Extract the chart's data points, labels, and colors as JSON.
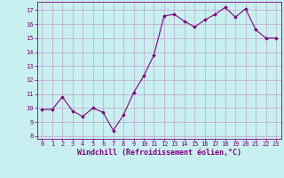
{
  "x": [
    0,
    1,
    2,
    3,
    4,
    5,
    6,
    7,
    8,
    9,
    10,
    11,
    12,
    13,
    14,
    15,
    16,
    17,
    18,
    19,
    20,
    21,
    22,
    23
  ],
  "y": [
    9.9,
    9.9,
    10.8,
    9.8,
    9.4,
    10.0,
    9.7,
    8.4,
    9.5,
    11.1,
    12.3,
    13.8,
    16.6,
    16.7,
    16.2,
    15.8,
    16.3,
    16.7,
    17.2,
    16.5,
    17.1,
    15.6,
    15.0,
    15.0
  ],
  "line_color": "#800080",
  "marker": "D",
  "marker_size": 1.8,
  "background_color": "#c8f0f0",
  "grid_color": "#c090c0",
  "xlabel": "Windchill (Refroidissement éolien,°C)",
  "xlabel_color": "#800080",
  "yticks": [
    8,
    9,
    10,
    11,
    12,
    13,
    14,
    15,
    16,
    17
  ],
  "ylim": [
    7.8,
    17.6
  ],
  "xlim": [
    -0.5,
    23.5
  ],
  "xticks": [
    0,
    1,
    2,
    3,
    4,
    5,
    6,
    7,
    8,
    9,
    10,
    11,
    12,
    13,
    14,
    15,
    16,
    17,
    18,
    19,
    20,
    21,
    22,
    23
  ],
  "tick_color": "#800080",
  "tick_fontsize": 5.0,
  "xlabel_fontsize": 6.0,
  "line_width": 0.8,
  "spine_color": "#800080"
}
